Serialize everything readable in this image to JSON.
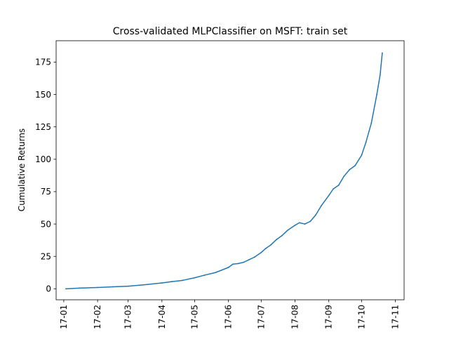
{
  "chart_data": {
    "type": "line",
    "title": "Cross-validated MLPClassifier on MSFT: train set",
    "xlabel": "",
    "ylabel": "Cumulative Returns",
    "xlim": [
      "2016-12-25",
      "2017-11-09"
    ],
    "ylim": [
      -8.5,
      191.5
    ],
    "x_ticks": [
      "2017-01-01",
      "2017-02-01",
      "2017-03-01",
      "2017-04-01",
      "2017-05-01",
      "2017-06-01",
      "2017-07-01",
      "2017-08-01",
      "2017-09-01",
      "2017-10-01",
      "2017-11-01"
    ],
    "x_tick_labels": [
      "17-01",
      "17-02",
      "17-03",
      "17-04",
      "17-05",
      "17-06",
      "17-07",
      "17-08",
      "17-09",
      "17-10",
      "17-11"
    ],
    "y_ticks": [
      0,
      25,
      50,
      75,
      100,
      125,
      150,
      175
    ],
    "y_tick_labels": [
      "0",
      "25",
      "50",
      "75",
      "100",
      "125",
      "150",
      "175"
    ],
    "grid": false,
    "legend": "none",
    "series": [
      {
        "color": "#1f77b4",
        "x": [
          "2017-01-03",
          "2017-01-15",
          "2017-02-01",
          "2017-02-15",
          "2017-03-01",
          "2017-03-15",
          "2017-04-01",
          "2017-04-10",
          "2017-04-20",
          "2017-05-01",
          "2017-05-10",
          "2017-05-20",
          "2017-06-01",
          "2017-06-05",
          "2017-06-10",
          "2017-06-15",
          "2017-06-20",
          "2017-06-25",
          "2017-07-01",
          "2017-07-05",
          "2017-07-10",
          "2017-07-15",
          "2017-07-20",
          "2017-07-25",
          "2017-08-01",
          "2017-08-05",
          "2017-08-10",
          "2017-08-15",
          "2017-08-20",
          "2017-08-25",
          "2017-09-01",
          "2017-09-05",
          "2017-09-10",
          "2017-09-15",
          "2017-09-20",
          "2017-09-25",
          "2017-10-01",
          "2017-10-05",
          "2017-10-10",
          "2017-10-15",
          "2017-10-18",
          "2017-10-20"
        ],
        "y": [
          0,
          0.5,
          1,
          1.5,
          2,
          3,
          4.5,
          5.5,
          6.5,
          8.5,
          10.5,
          12.5,
          16.5,
          19,
          19.5,
          20.5,
          22.5,
          24.5,
          28,
          31,
          34,
          38,
          41,
          45,
          49,
          51,
          50,
          52,
          57,
          64,
          72,
          77,
          80,
          87,
          92,
          95,
          103,
          113,
          128,
          150,
          165,
          182
        ]
      }
    ]
  }
}
